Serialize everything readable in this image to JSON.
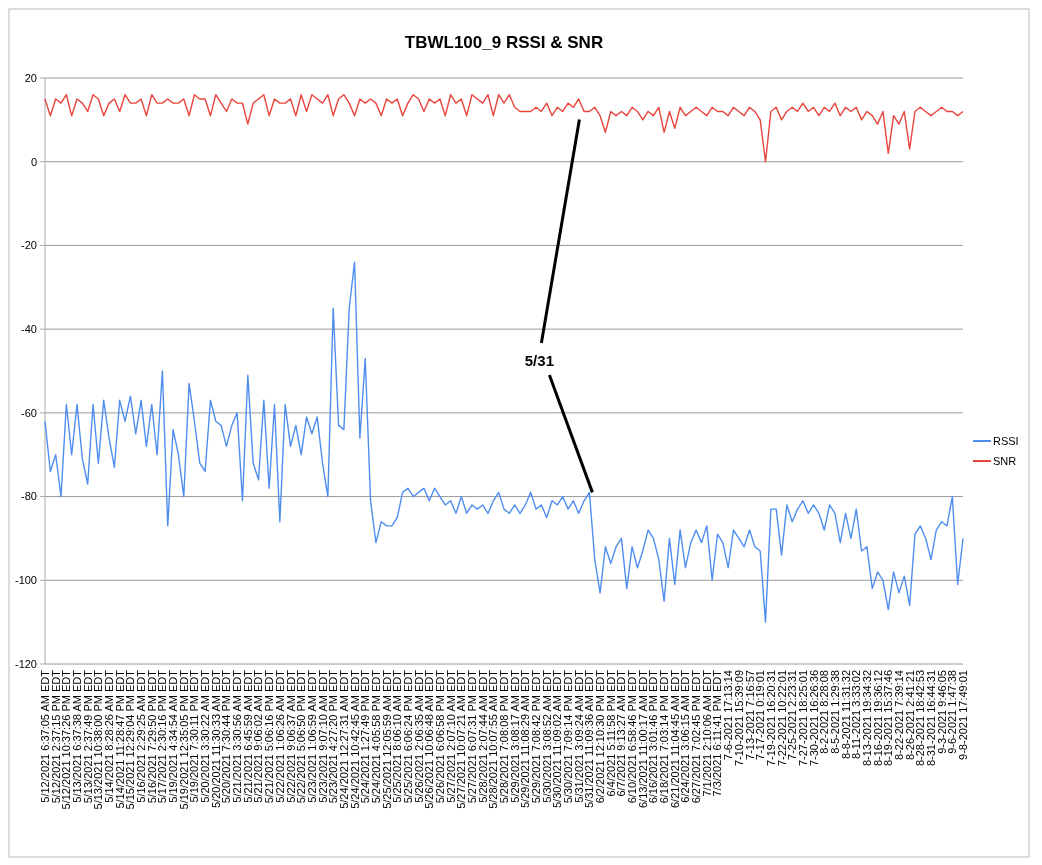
{
  "chart_data": {
    "type": "line",
    "title": "TBWL100_9 RSSI & SNR",
    "categories": [
      "5/12/2021 6:37:05 AM EDT",
      null,
      "5/12/2021 2:37:15 PM EDT",
      null,
      "5/12/2021 10:37:26 PM EDT",
      null,
      "5/13/2021 6:37:38 AM EDT",
      null,
      "5/13/2021 2:37:49 PM EDT",
      null,
      "5/13/2021 10:38:00 PM EDT",
      null,
      "5/14/2021 8:28:26 AM EDT",
      null,
      "5/14/2021 11:28:47 PM EDT",
      null,
      "5/15/2021 12:29:04 PM EDT",
      null,
      "5/16/2021 2:29:25 AM EDT",
      null,
      "5/16/2021 7:29:50 PM EDT",
      null,
      "5/17/2021 2:30:16 PM EDT",
      null,
      "5/19/2021 4:34:54 AM EDT",
      null,
      "5/19/2021 12:35:05 PM EDT",
      null,
      "5/19/2021 7:30:11 PM EDT",
      null,
      "5/20/2021 3:30:22 AM EDT",
      null,
      "5/20/2021 11:30:33 AM EDT",
      null,
      "5/20/2021 7:30:44 PM EDT",
      null,
      "5/21/2021 3:30:56 AM EDT",
      null,
      "5/21/2021 6:45:59 AM EDT",
      null,
      "5/21/2021 9:06:02 AM EDT",
      null,
      "5/21/2021 5:06:16 PM EDT",
      null,
      "5/22/2021 1:06:26 AM EDT",
      null,
      "5/22/2021 9:06:37 AM EDT",
      null,
      "5/22/2021 5:06:50 PM EDT",
      null,
      "5/23/2021 1:06:59 AM EDT",
      null,
      "5/23/2021 9:07:10 AM EDT",
      null,
      "5/23/2021 4:27:20 PM EDT",
      null,
      "5/24/2021 12:27:31 AM EDT",
      null,
      "5/24/2021 10:42:45 AM EDT",
      null,
      "5/24/2021 1:27:49 PM EDT",
      null,
      "5/24/2021 4:05:58 PM EDT",
      null,
      "5/25/2021 12:05:59 AM EDT",
      null,
      "5/25/2021 8:06:10 AM EDT",
      null,
      "5/25/2021 6:06:24 PM EDT",
      null,
      "5/26/2021 2:06:35 AM EDT",
      null,
      "5/26/2021 10:06:48 AM EDT",
      null,
      "5/26/2021 6:06:58 PM EDT",
      null,
      "5/27/2021 2:07:10 AM EDT",
      null,
      "5/27/2021 10:07:21 AM EDT",
      null,
      "5/27/2021 6:07:31 PM EDT",
      null,
      "5/28/2021 2:07:44 AM EDT",
      null,
      "5/28/2021 10:07:55 AM EDT",
      null,
      "5/28/2021 7:08:08 PM EDT",
      null,
      "5/29/2021 3:08:17 AM EDT",
      null,
      "5/29/2021 11:08:29 AM EDT",
      null,
      "5/29/2021 7:08:42 PM EDT",
      null,
      "5/30/2021 3:08:52 AM EDT",
      null,
      "5/30/2021 11:09:02 AM EDT",
      null,
      "5/30/2021 7:09:14 PM EDT",
      null,
      "5/31/2021 3:09:24 AM EDT",
      null,
      "5/31/2021 11:09:36 AM EDT",
      null,
      "6/2/2021 12:10:30 PM EDT",
      null,
      "6/4/2021 5:11:58 PM EDT",
      null,
      "6/7/2021 9:13:27 AM EDT",
      null,
      "6/10/2021 6:58:46 PM EDT",
      null,
      "6/13/2021 11:00:17 AM EDT",
      null,
      "6/16/2021 3:01:46 PM EDT",
      null,
      "6/18/2021 7:03:14 PM EDT",
      null,
      "6/21/2021 11:04:45 AM EDT",
      null,
      "6/24/2021 3:06:15 AM EDT",
      null,
      "6/27/2021 7:02:45 PM EDT",
      null,
      "7/1/2021 2:10:06 AM EDT",
      null,
      "7/3/2021 6:11:41 PM EDT",
      null,
      "7-6-2021 17:13:14",
      null,
      "7-10-2021 15:39:09",
      null,
      "7-13-2021 7:16:57",
      null,
      "7-17-2021 0:19:01",
      null,
      "7-19-2021 16:20:31",
      null,
      "7-22-2021 10:22:01",
      null,
      "7-25-2021 2:23:31",
      null,
      "7-27-2021 18:25:01",
      null,
      "7-30-2021 16:26:36",
      null,
      "8-2-2021 8:28:08",
      null,
      "8-5-2021 1:29:38",
      null,
      "8-8-2021 11:31:32",
      null,
      "8-11-2021 3:33:02",
      null,
      "8-13-2021 19:34:32",
      null,
      "8-16-2021 19:36:12",
      null,
      "8-19-2021 15:37:46",
      null,
      "8-22-2021 7:39:14",
      null,
      "8-26-2021 2:41:21",
      null,
      "8-28-2021 18:42:53",
      null,
      "8-31-2021 16:44:31",
      null,
      "9-3-2021 9:46:05",
      null,
      "9-6-2021 1:47:38",
      null,
      "9-8-2021 17:49:01"
    ],
    "series": [
      {
        "name": "RSSI",
        "color": "#4f8ef0",
        "values": [
          -62,
          -74,
          -70,
          -80,
          -58,
          -70,
          -58,
          -71,
          -77,
          -58,
          -72,
          -57,
          -66,
          -73,
          -57,
          -62,
          -56,
          -65,
          -57,
          -68,
          -58,
          -70,
          -50,
          -87,
          -64,
          -70,
          -80,
          -53,
          -62,
          -72,
          -74,
          -57,
          -62,
          -63,
          -68,
          -63,
          -60,
          -81,
          -51,
          -72,
          -76,
          -57,
          -78,
          -58,
          -86,
          -58,
          -68,
          -63,
          -70,
          -61,
          -65,
          -61,
          -72,
          -80,
          -35,
          -63,
          -64,
          -35,
          -24,
          -66,
          -47,
          -81,
          -91,
          -86,
          -87,
          -87,
          -85,
          -79,
          -78,
          -80,
          -79,
          -78,
          -81,
          -78,
          -80,
          -82,
          -81,
          -84,
          -80,
          -84,
          -82,
          -83,
          -82,
          -84,
          -81,
          -79,
          -83,
          -84,
          -82,
          -84,
          -82,
          -79,
          -83,
          -82,
          -85,
          -81,
          -82,
          -80,
          -83,
          -81,
          -84,
          -81,
          -79,
          -95,
          -103,
          -92,
          -96,
          -92,
          -90,
          -102,
          -92,
          -97,
          -93,
          -88,
          -90,
          -95,
          -105,
          -90,
          -101,
          -88,
          -97,
          -91,
          -88,
          -91,
          -87,
          -100,
          -89,
          -91,
          -97,
          -88,
          -90,
          -92,
          -88,
          -92,
          -93,
          -110,
          -83,
          -83,
          -94,
          -82,
          -86,
          -83,
          -81,
          -84,
          -82,
          -84,
          -88,
          -82,
          -84,
          -91,
          -84,
          -90,
          -83,
          -93,
          -92,
          -102,
          -98,
          -100,
          -107,
          -98,
          -103,
          -99,
          -106,
          -89,
          -87,
          -90,
          -95,
          -88,
          -86,
          -87,
          -80,
          -101,
          -90
        ]
      },
      {
        "name": "SNR",
        "color": "#e8453c",
        "values": [
          15,
          11,
          15,
          14,
          16,
          11,
          15,
          14,
          12,
          16,
          15,
          11,
          14,
          15,
          12,
          16,
          14,
          14,
          15,
          11,
          16,
          14,
          14,
          15,
          14,
          14,
          15,
          11,
          16,
          15,
          15,
          11,
          16,
          14,
          12,
          15,
          14,
          14,
          9,
          14,
          15,
          16,
          11,
          15,
          14,
          14,
          15,
          11,
          16,
          12,
          16,
          15,
          14,
          16,
          11,
          15,
          16,
          14,
          11,
          15,
          14,
          15,
          14,
          11,
          15,
          14,
          15,
          11,
          14,
          16,
          15,
          12,
          15,
          14,
          15,
          11,
          16,
          14,
          15,
          11,
          16,
          15,
          14,
          16,
          11,
          16,
          14,
          16,
          13,
          12,
          12,
          12,
          13,
          12,
          14,
          11,
          13,
          12,
          14,
          13,
          15,
          12,
          12,
          13,
          11,
          7,
          12,
          11,
          12,
          11,
          13,
          12,
          10,
          12,
          11,
          13,
          7,
          12,
          8,
          13,
          11,
          12,
          13,
          12,
          11,
          13,
          12,
          12,
          11,
          13,
          12,
          11,
          13,
          12,
          10,
          0,
          12,
          13,
          10,
          12,
          13,
          12,
          14,
          12,
          13,
          11,
          13,
          12,
          14,
          11,
          13,
          12,
          13,
          10,
          12,
          11,
          9,
          12,
          2,
          11,
          9,
          12,
          3,
          12,
          13,
          12,
          11,
          12,
          13,
          12,
          12,
          11,
          12
        ]
      }
    ],
    "ylim": [
      -120,
      20
    ],
    "yticks": [
      -120,
      -100,
      -80,
      -60,
      -40,
      -20,
      0,
      20
    ],
    "grid": "y",
    "legend": "right",
    "marker": "none",
    "line_style": "solid",
    "annotations": [
      {
        "text": "5/31",
        "x": "5/31/2021 11:09:36 AM EDT",
        "y": -79
      }
    ]
  }
}
